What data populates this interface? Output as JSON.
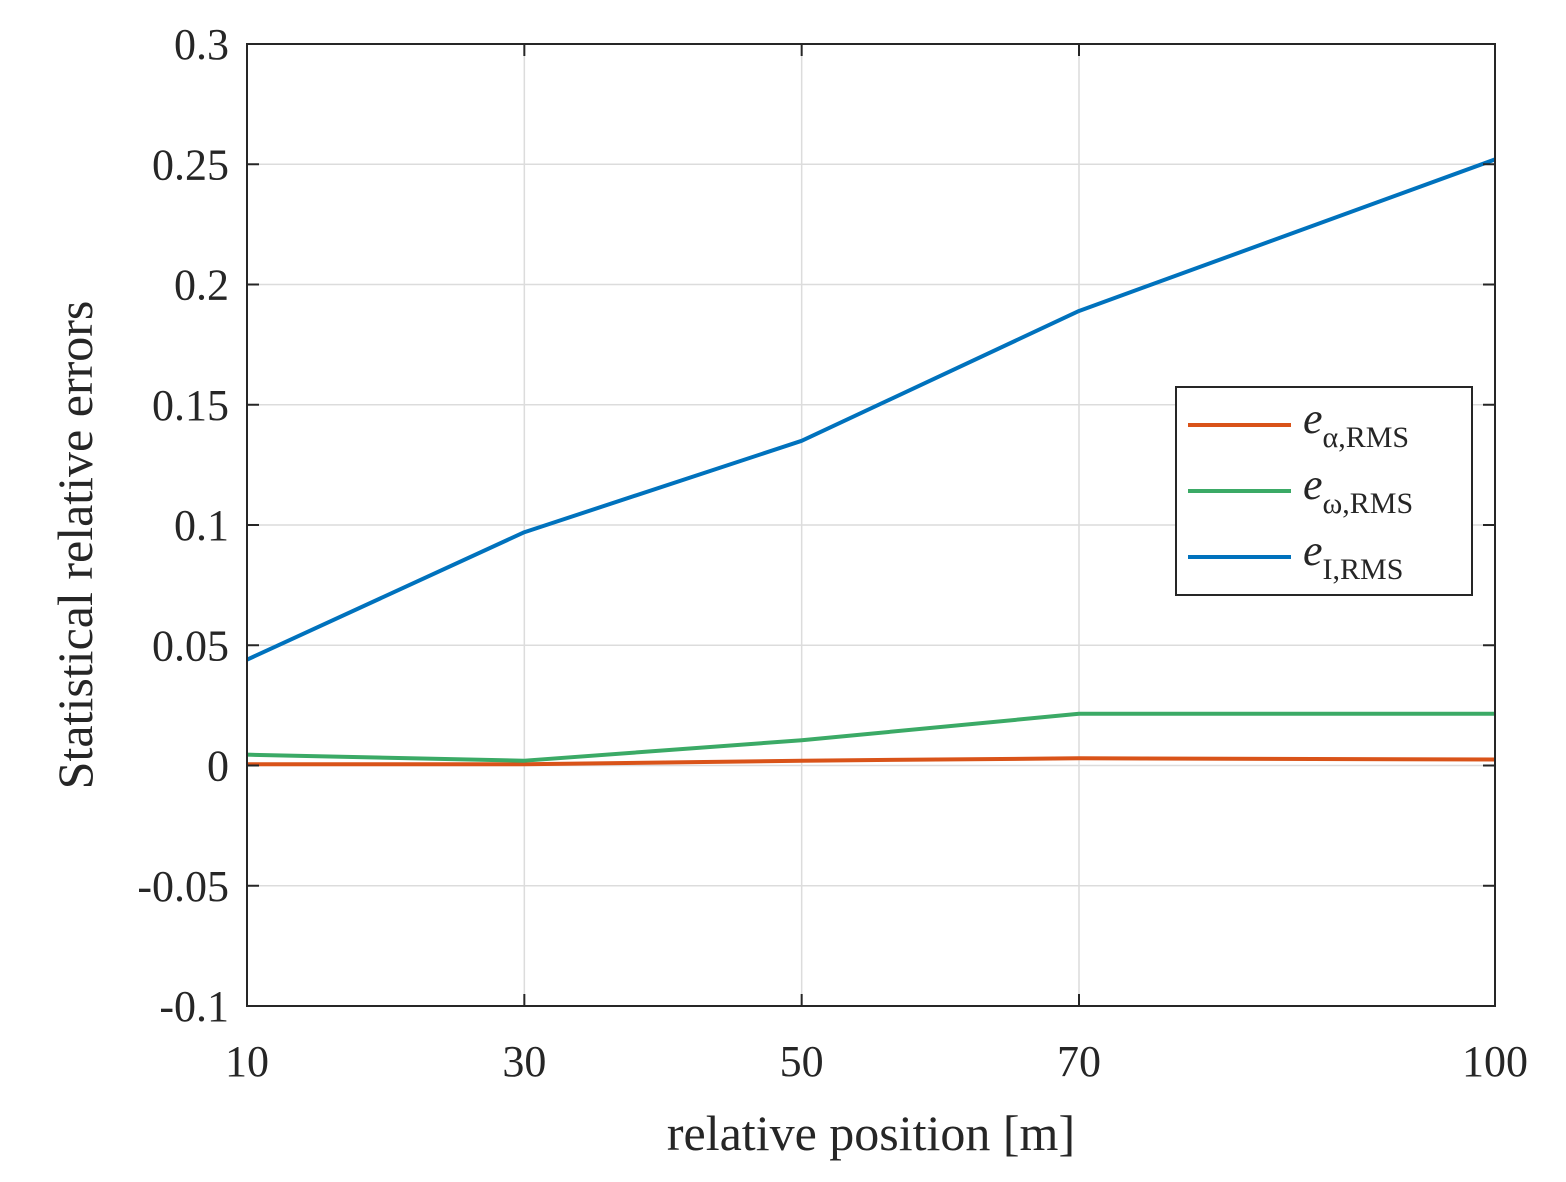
{
  "chart_data": {
    "type": "line",
    "title": "",
    "xlabel": "relative position [m]",
    "ylabel": "Statistical relative errors",
    "x": [
      10,
      30,
      50,
      70,
      100
    ],
    "x_ticks": [
      10,
      30,
      50,
      70,
      100
    ],
    "x_tick_labels": [
      "10",
      "30",
      "50",
      "70",
      "100"
    ],
    "xlim": [
      10,
      100
    ],
    "y_ticks": [
      -0.1,
      -0.05,
      0,
      0.05,
      0.1,
      0.15,
      0.2,
      0.25,
      0.3
    ],
    "y_tick_labels": [
      "-0.1",
      "-0.05",
      "0",
      "0.05",
      "0.1",
      "0.15",
      "0.2",
      "0.25",
      "0.3"
    ],
    "ylim": [
      -0.1,
      0.3
    ],
    "grid": true,
    "legend_position": "right, upper-middle",
    "series": [
      {
        "name": "e_{α,RMS}",
        "main": "e",
        "sub": "α,RMS",
        "color": "#D95319",
        "values": [
          0.0005,
          0.0005,
          0.002,
          0.003,
          0.0025
        ]
      },
      {
        "name": "e_{ω,RMS}",
        "main": "e",
        "sub": "ω,RMS",
        "color": "#3BAA66",
        "values": [
          0.0045,
          0.002,
          0.0105,
          0.0215,
          0.0215
        ]
      },
      {
        "name": "e_{I,RMS}",
        "main": "e",
        "sub": "I,RMS",
        "color": "#0072BD",
        "values": [
          0.044,
          0.097,
          0.135,
          0.189,
          0.252
        ]
      }
    ]
  }
}
